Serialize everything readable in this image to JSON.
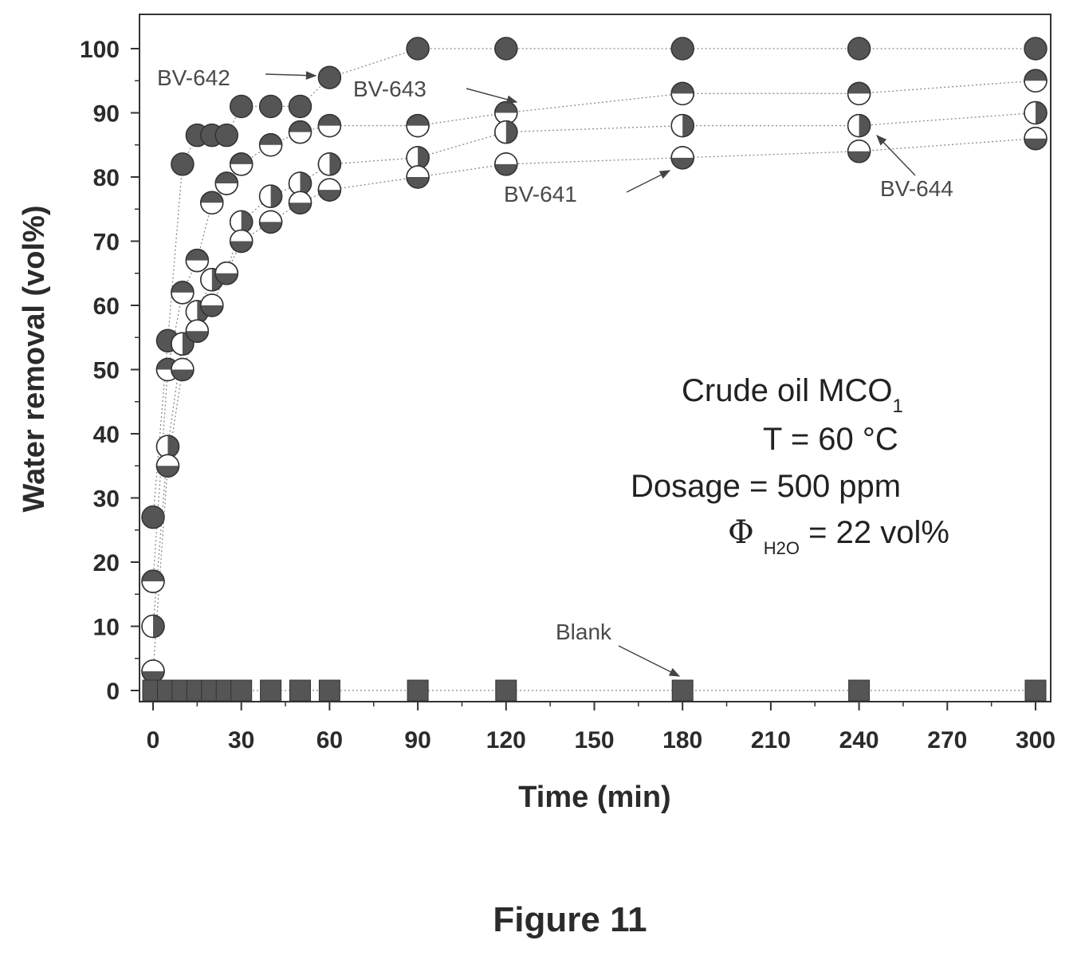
{
  "figure_caption": "Figure 11",
  "colors": {
    "marker_fill": "#555555",
    "marker_stroke": "#333333",
    "line": "#8a8a8a",
    "axis": "#333333"
  },
  "chart_data": {
    "type": "scatter",
    "title": "",
    "xlabel": "Time (min)",
    "ylabel": "Water removal (vol%)",
    "xlim": [
      -3,
      304
    ],
    "ylim": [
      -2,
      105
    ],
    "x_ticks": [
      "0",
      "30",
      "60",
      "90",
      "120",
      "150",
      "180",
      "210",
      "240",
      "270",
      "300"
    ],
    "y_ticks": [
      "0",
      "10",
      "20",
      "30",
      "40",
      "50",
      "60",
      "70",
      "80",
      "90",
      "100"
    ],
    "grid": false,
    "series": [
      {
        "name": "BV-642",
        "marker": "circle-full",
        "x": [
          0,
          5,
          10,
          15,
          20,
          25,
          30,
          40,
          50,
          60,
          90,
          120,
          180,
          240,
          300
        ],
        "y": [
          27,
          54.5,
          82,
          86.5,
          86.5,
          86.5,
          91,
          91,
          91,
          95.5,
          100,
          100,
          100,
          100,
          100
        ]
      },
      {
        "name": "BV-643",
        "marker": "circle-top-half",
        "x": [
          0,
          5,
          10,
          15,
          20,
          25,
          30,
          40,
          50,
          60,
          90,
          120,
          180,
          240,
          300
        ],
        "y": [
          17,
          50,
          62,
          67,
          76,
          79,
          82,
          85,
          87,
          88,
          88,
          90,
          93,
          93,
          95
        ]
      },
      {
        "name": "BV-644",
        "marker": "circle-right-half",
        "x": [
          0,
          5,
          10,
          15,
          20,
          25,
          30,
          40,
          50,
          60,
          90,
          120,
          180,
          240,
          300
        ],
        "y": [
          10,
          38,
          54,
          59,
          64,
          65,
          73,
          77,
          79,
          82,
          83,
          87,
          88,
          88,
          90
        ]
      },
      {
        "name": "BV-641",
        "marker": "circle-bottom-half",
        "x": [
          0,
          5,
          10,
          15,
          20,
          25,
          30,
          40,
          50,
          60,
          90,
          120,
          180,
          240,
          300
        ],
        "y": [
          3,
          35,
          50,
          56,
          60,
          65,
          70,
          73,
          76,
          78,
          80,
          82,
          83,
          84,
          86
        ]
      },
      {
        "name": "Blank",
        "marker": "square",
        "x": [
          0,
          5,
          10,
          15,
          20,
          25,
          30,
          40,
          50,
          60,
          90,
          120,
          180,
          240,
          300
        ],
        "y": [
          0,
          0,
          0,
          0,
          0,
          0,
          0,
          0,
          0,
          0,
          0,
          0,
          0,
          0,
          0
        ]
      }
    ],
    "annotations": [
      {
        "text": "BV-642",
        "series": "BV-642",
        "target_x": 60,
        "target_y": 95.5
      },
      {
        "text": "BV-643",
        "series": "BV-643",
        "target_x": 120,
        "target_y": 90
      },
      {
        "text": "BV-641",
        "series": "BV-641",
        "target_x": 180,
        "target_y": 83
      },
      {
        "text": "BV-644",
        "series": "BV-644",
        "target_x": 240,
        "target_y": 88
      },
      {
        "text": "Blank",
        "series": "Blank",
        "target_x": 180,
        "target_y": 0
      }
    ],
    "conditions": {
      "line1_main": "Crude oil MCO",
      "line1_sub": "1",
      "line2": "T = 60 °C",
      "line3": "Dosage = 500 ppm",
      "line4_symbol": "Φ",
      "line4_sub": "H2O",
      "line4_rest": " = 22 vol%"
    }
  }
}
